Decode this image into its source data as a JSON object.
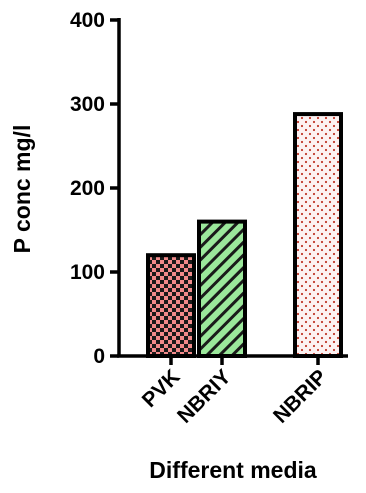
{
  "chart_data": {
    "type": "bar",
    "title": "",
    "xlabel": "Different media",
    "ylabel": "P conc mg/l",
    "ylim": [
      0,
      400
    ],
    "yticks": [
      0,
      100,
      200,
      300,
      400
    ],
    "ytick_labels": [
      "0",
      "100",
      "200",
      "300",
      "400"
    ],
    "categories": [
      "PVK",
      "NBRIY",
      "NBRIP"
    ],
    "values": [
      120,
      160,
      288
    ],
    "bar_colors": [
      "#f08a8a",
      "#9be89b",
      "#fce3e3"
    ],
    "bar_patterns": [
      "checkerboard",
      "diagonal-hatch",
      "dotted"
    ],
    "edge_color": "#000000",
    "grid": false,
    "legend": "none"
  }
}
